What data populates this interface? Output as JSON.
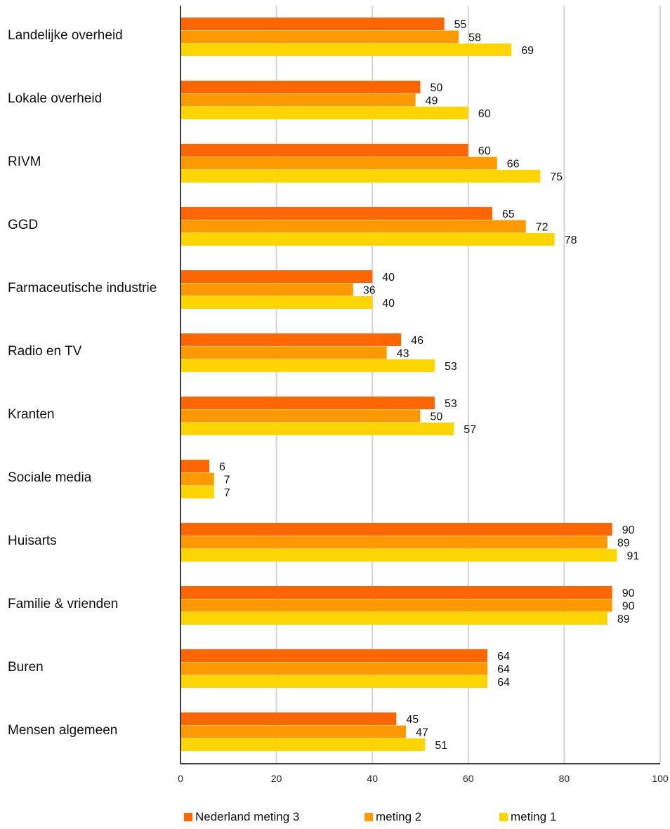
{
  "chart_data": {
    "type": "bar",
    "orientation": "horizontal",
    "categories": [
      "Landelijke overheid",
      "Lokale overheid",
      "RIVM",
      "GGD",
      "Farmaceutische industrie",
      "Radio en TV",
      "Kranten",
      "Sociale media",
      "Huisarts",
      "Familie & vrienden",
      "Buren",
      "Mensen algemeen"
    ],
    "series": [
      {
        "name": "Nederland meting 3",
        "color": "#FF6600",
        "values": [
          55,
          50,
          60,
          65,
          40,
          46,
          53,
          6,
          90,
          90,
          64,
          45
        ]
      },
      {
        "name": "meting 2",
        "color": "#FF9900",
        "values": [
          58,
          49,
          66,
          72,
          36,
          43,
          50,
          7,
          89,
          90,
          64,
          47
        ]
      },
      {
        "name": "meting 1",
        "color": "#FFD500",
        "values": [
          69,
          60,
          75,
          78,
          40,
          53,
          57,
          7,
          91,
          89,
          64,
          51
        ]
      }
    ],
    "xlim": [
      0,
      100
    ],
    "xticks": [
      "0",
      "20",
      "40",
      "60",
      "80",
      "100"
    ],
    "grid": "vertical",
    "legend_position": "bottom"
  }
}
